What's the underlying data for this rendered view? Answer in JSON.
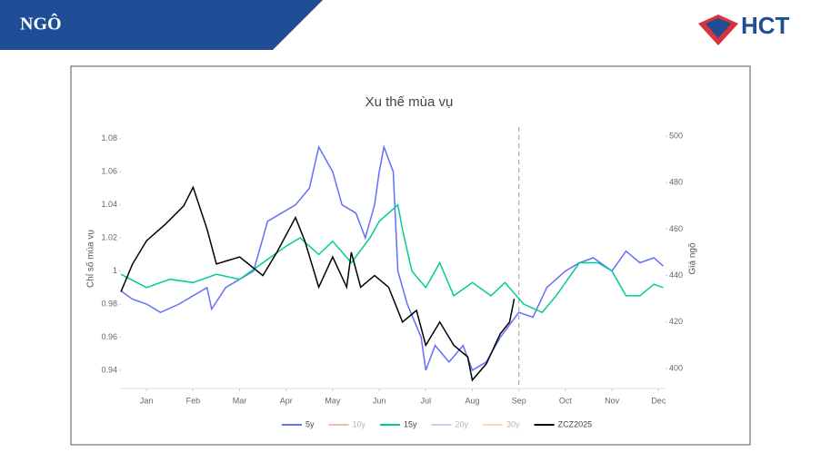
{
  "header": {
    "title": "NGÔ",
    "logo": "HCT"
  },
  "chart_data": {
    "type": "line",
    "title": "Xu thế mùa vụ",
    "y_label": "Chỉ số mùa vụ",
    "y2_label": "Giá ngô",
    "xlim": [
      -0.55,
      11.15
    ],
    "xticks": [
      {
        "value": 0,
        "label": "Jan"
      },
      {
        "value": 1,
        "label": "Feb"
      },
      {
        "value": 2,
        "label": "Mar"
      },
      {
        "value": 3,
        "label": "Apr"
      },
      {
        "value": 4,
        "label": "May"
      },
      {
        "value": 5,
        "label": "Jun"
      },
      {
        "value": 6,
        "label": "Jul"
      },
      {
        "value": 7,
        "label": "Aug"
      },
      {
        "value": 8,
        "label": "Sep"
      },
      {
        "value": 9,
        "label": "Oct"
      },
      {
        "value": 10,
        "label": "Nov"
      },
      {
        "value": 11,
        "label": "Dec"
      }
    ],
    "ylim": [
      0.929,
      1.087
    ],
    "yticks": [
      0.94,
      0.96,
      0.98,
      1,
      1.02,
      1.04,
      1.06,
      1.08
    ],
    "y2lim": [
      391.4,
      503.9
    ],
    "y2ticks": [
      400,
      420,
      440,
      460,
      480,
      500
    ],
    "vline_x": 8,
    "legend": "bottom",
    "series": [
      {
        "name": "5y",
        "color": "#636efa",
        "x": [
          -0.55,
          -0.3,
          0,
          0.3,
          0.7,
          1,
          1.3,
          1.4,
          1.7,
          2,
          2.3,
          2.6,
          2.9,
          3.2,
          3.5,
          3.7,
          4,
          4.2,
          4.5,
          4.7,
          4.9,
          5,
          5.1,
          5.3,
          5.4,
          5.6,
          5.9,
          6,
          6.2,
          6.5,
          6.8,
          7,
          7.3,
          7.6,
          8,
          8.3,
          8.6,
          9,
          9.3,
          9.6,
          10,
          10.3,
          10.6,
          10.9,
          11.1
        ],
        "values": [
          0.988,
          0.983,
          0.98,
          0.975,
          0.98,
          0.985,
          0.99,
          0.977,
          0.99,
          0.995,
          1.0,
          1.03,
          1.035,
          1.04,
          1.05,
          1.075,
          1.06,
          1.04,
          1.035,
          1.02,
          1.04,
          1.06,
          1.075,
          1.06,
          1.0,
          0.98,
          0.96,
          0.94,
          0.955,
          0.945,
          0.955,
          0.94,
          0.945,
          0.96,
          0.975,
          0.972,
          0.99,
          1.0,
          1.005,
          1.008,
          1.0,
          1.012,
          1.005,
          1.008,
          1.003
        ]
      },
      {
        "name": "10y",
        "color": "#ef553b",
        "visible": false
      },
      {
        "name": "15y",
        "color": "#00cc96",
        "x": [
          -0.55,
          0,
          0.5,
          1,
          1.5,
          2,
          2.5,
          3,
          3.3,
          3.7,
          4,
          4.4,
          4.8,
          5,
          5.4,
          5.5,
          5.7,
          6,
          6.3,
          6.6,
          7,
          7.4,
          7.7,
          8.1,
          8.5,
          8.8,
          9.3,
          9.7,
          10,
          10.3,
          10.6,
          10.9,
          11.1
        ],
        "values": [
          0.998,
          0.99,
          0.995,
          0.993,
          0.998,
          0.995,
          1.005,
          1.015,
          1.02,
          1.01,
          1.018,
          1.005,
          1.02,
          1.03,
          1.04,
          1.025,
          1.0,
          0.99,
          1.005,
          0.985,
          0.993,
          0.985,
          0.993,
          0.98,
          0.975,
          0.985,
          1.005,
          1.005,
          1.0,
          0.985,
          0.985,
          0.992,
          0.99
        ]
      },
      {
        "name": "20y",
        "color": "#ab63fa",
        "visible": false
      },
      {
        "name": "30y",
        "color": "#ffa15a",
        "visible": false
      },
      {
        "name": "ZCZ2025",
        "color": "#000000",
        "axis": "y2",
        "x": [
          -0.55,
          -0.3,
          0,
          0.4,
          0.8,
          1,
          1.3,
          1.5,
          2,
          2.5,
          2.8,
          3.2,
          3.4,
          3.7,
          4,
          4.3,
          4.4,
          4.6,
          4.9,
          5.2,
          5.5,
          5.8,
          6,
          6.3,
          6.6,
          6.9,
          7,
          7.3,
          7.6,
          7.8,
          7.9
        ],
        "values": [
          433,
          445,
          455,
          462,
          470,
          478,
          460,
          445,
          448,
          440,
          450,
          465,
          455,
          435,
          448,
          435,
          450,
          435,
          440,
          435,
          420,
          425,
          410,
          420,
          410,
          405,
          395,
          402,
          415,
          420,
          430
        ]
      }
    ]
  }
}
